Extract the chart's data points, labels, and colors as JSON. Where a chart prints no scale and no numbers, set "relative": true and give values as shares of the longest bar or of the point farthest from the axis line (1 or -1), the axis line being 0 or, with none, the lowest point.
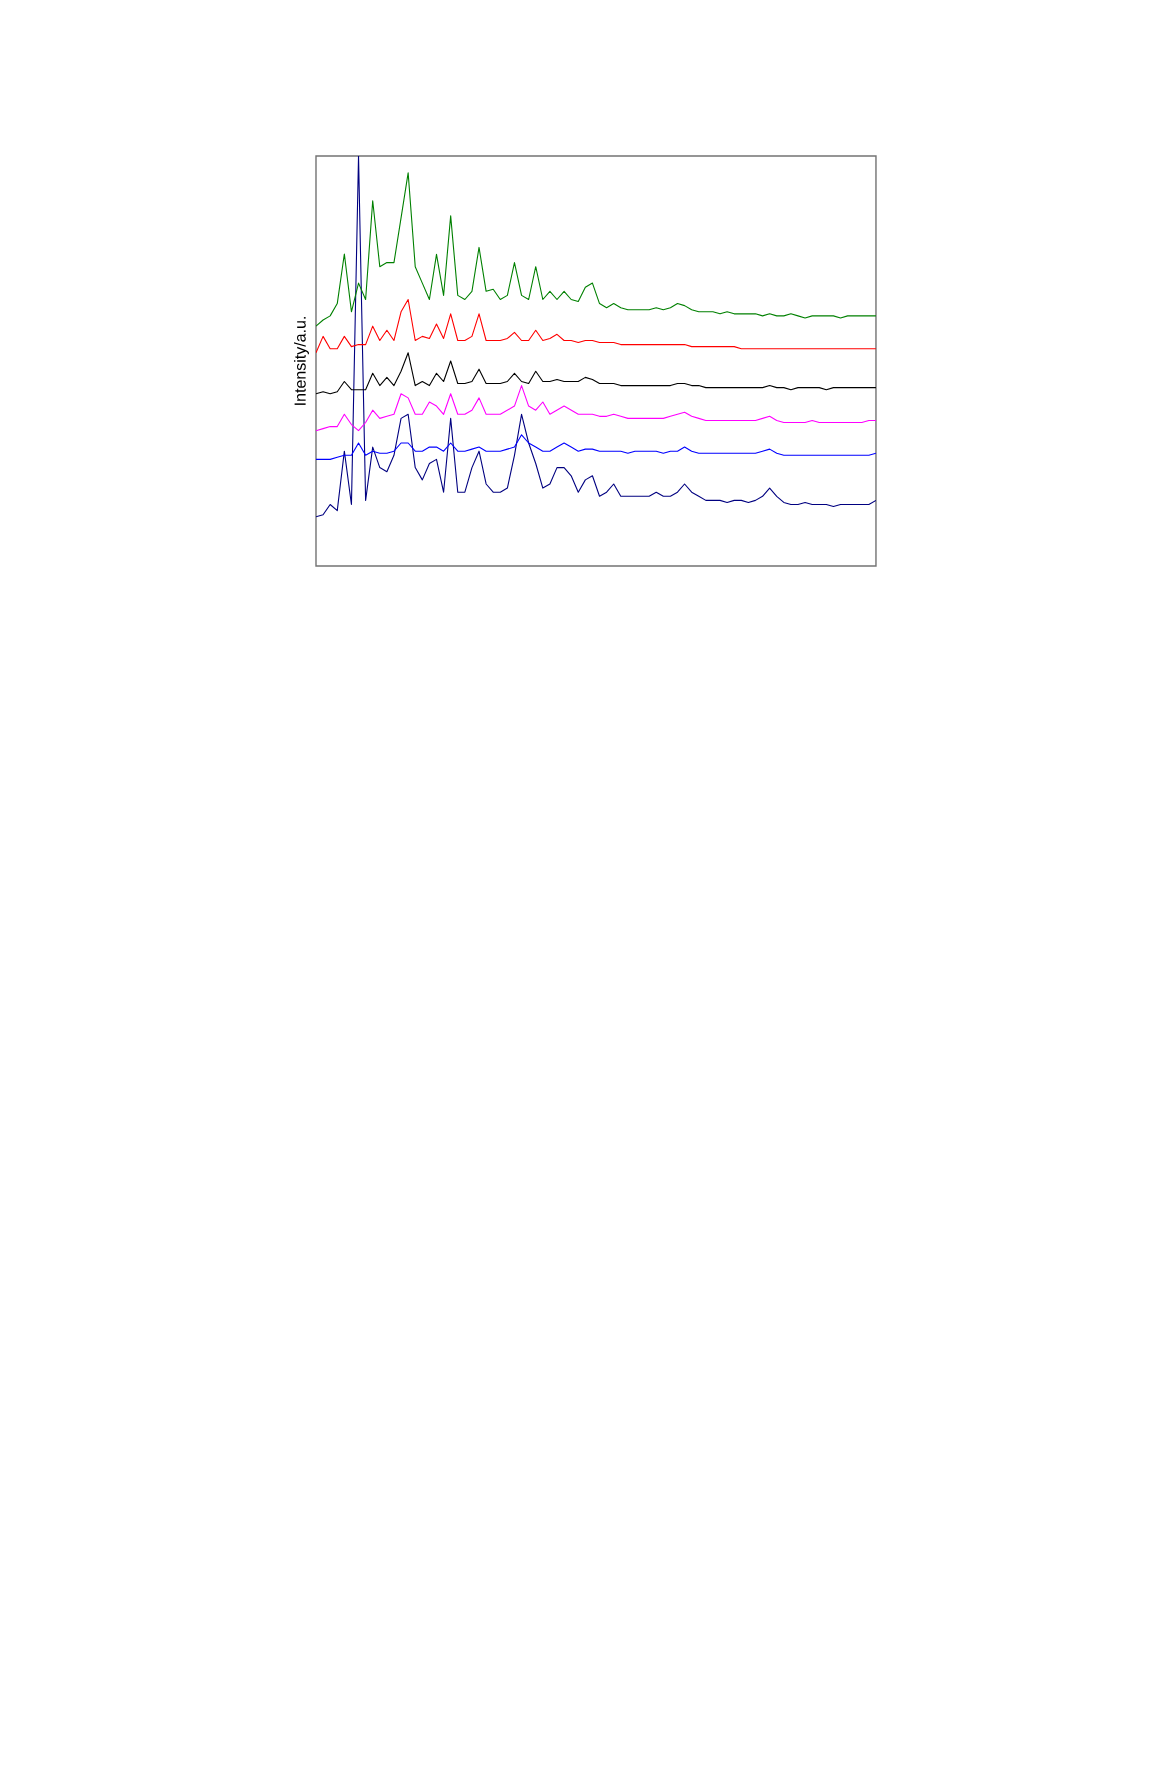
{
  "chart_data": {
    "type": "line",
    "ylabel": "Intensity/a.u.",
    "relative": true,
    "marker": "none",
    "line_style": "solid",
    "categories": [
      null,
      null,
      null,
      null,
      null,
      null,
      null,
      null,
      null,
      null,
      null,
      null,
      null,
      null,
      null,
      null,
      null,
      null,
      null,
      null,
      null,
      null,
      null,
      null,
      null,
      null,
      null,
      null,
      null,
      null,
      null,
      null,
      null,
      null,
      null,
      null,
      null,
      null,
      null,
      null,
      null,
      null,
      null,
      null,
      null,
      null,
      null,
      null,
      null,
      null,
      null,
      null,
      null,
      null,
      null,
      null,
      null,
      null,
      null,
      null,
      null,
      null,
      null,
      null,
      null,
      null,
      null,
      null,
      null,
      null,
      null,
      null,
      null,
      null,
      null,
      null,
      null,
      null,
      null,
      null
    ],
    "series": [
      {
        "color": "#000080",
        "values": [
          0.12,
          0.125,
          0.15,
          0.135,
          0.28,
          0.15,
          1.0,
          0.16,
          0.29,
          0.24,
          0.23,
          0.27,
          0.36,
          0.37,
          0.24,
          0.21,
          0.25,
          0.26,
          0.18,
          0.36,
          0.18,
          0.18,
          0.24,
          0.28,
          0.2,
          0.18,
          0.18,
          0.19,
          0.27,
          0.37,
          0.3,
          0.25,
          0.19,
          0.2,
          0.24,
          0.24,
          0.22,
          0.18,
          0.21,
          0.22,
          0.17,
          0.18,
          0.2,
          0.17,
          0.17,
          0.17,
          0.17,
          0.17,
          0.18,
          0.17,
          0.17,
          0.18,
          0.2,
          0.18,
          0.17,
          0.16,
          0.16,
          0.16,
          0.155,
          0.16,
          0.16,
          0.155,
          0.16,
          0.17,
          0.19,
          0.17,
          0.155,
          0.15,
          0.15,
          0.155,
          0.15,
          0.15,
          0.15,
          0.145,
          0.15,
          0.15,
          0.15,
          0.15,
          0.15,
          0.16
        ]
      },
      {
        "color": "#0000ff",
        "values": [
          0.26,
          0.26,
          0.26,
          0.265,
          0.27,
          0.27,
          0.3,
          0.27,
          0.28,
          0.275,
          0.275,
          0.28,
          0.3,
          0.3,
          0.28,
          0.28,
          0.29,
          0.29,
          0.28,
          0.3,
          0.28,
          0.28,
          0.285,
          0.29,
          0.28,
          0.28,
          0.28,
          0.285,
          0.29,
          0.32,
          0.3,
          0.29,
          0.28,
          0.28,
          0.29,
          0.3,
          0.29,
          0.28,
          0.285,
          0.285,
          0.28,
          0.28,
          0.28,
          0.28,
          0.275,
          0.28,
          0.28,
          0.28,
          0.28,
          0.275,
          0.28,
          0.28,
          0.29,
          0.28,
          0.275,
          0.275,
          0.275,
          0.275,
          0.275,
          0.275,
          0.275,
          0.275,
          0.275,
          0.28,
          0.285,
          0.275,
          0.27,
          0.27,
          0.27,
          0.27,
          0.27,
          0.27,
          0.27,
          0.27,
          0.27,
          0.27,
          0.27,
          0.27,
          0.27,
          0.275
        ]
      },
      {
        "color": "#ff00ff",
        "values": [
          0.33,
          0.335,
          0.34,
          0.34,
          0.37,
          0.345,
          0.33,
          0.35,
          0.38,
          0.36,
          0.365,
          0.37,
          0.42,
          0.41,
          0.37,
          0.37,
          0.4,
          0.39,
          0.37,
          0.42,
          0.37,
          0.37,
          0.38,
          0.41,
          0.37,
          0.37,
          0.37,
          0.38,
          0.39,
          0.44,
          0.39,
          0.38,
          0.4,
          0.37,
          0.38,
          0.39,
          0.38,
          0.37,
          0.37,
          0.37,
          0.365,
          0.365,
          0.37,
          0.365,
          0.36,
          0.36,
          0.36,
          0.36,
          0.36,
          0.36,
          0.365,
          0.37,
          0.375,
          0.365,
          0.36,
          0.355,
          0.355,
          0.355,
          0.355,
          0.355,
          0.355,
          0.355,
          0.355,
          0.36,
          0.365,
          0.355,
          0.35,
          0.35,
          0.35,
          0.35,
          0.355,
          0.35,
          0.35,
          0.35,
          0.35,
          0.35,
          0.35,
          0.35,
          0.355,
          0.355
        ]
      },
      {
        "color": "#000000",
        "values": [
          0.42,
          0.425,
          0.42,
          0.425,
          0.45,
          0.43,
          0.43,
          0.43,
          0.47,
          0.44,
          0.46,
          0.44,
          0.475,
          0.52,
          0.44,
          0.45,
          0.44,
          0.47,
          0.45,
          0.5,
          0.445,
          0.445,
          0.45,
          0.48,
          0.445,
          0.445,
          0.445,
          0.45,
          0.47,
          0.45,
          0.445,
          0.475,
          0.45,
          0.45,
          0.455,
          0.45,
          0.45,
          0.45,
          0.46,
          0.455,
          0.445,
          0.445,
          0.445,
          0.44,
          0.44,
          0.44,
          0.44,
          0.44,
          0.44,
          0.44,
          0.44,
          0.445,
          0.445,
          0.44,
          0.44,
          0.435,
          0.435,
          0.435,
          0.435,
          0.435,
          0.435,
          0.435,
          0.435,
          0.435,
          0.44,
          0.435,
          0.435,
          0.43,
          0.435,
          0.435,
          0.435,
          0.435,
          0.43,
          0.435,
          0.435,
          0.435,
          0.435,
          0.435,
          0.435,
          0.435
        ]
      },
      {
        "color": "#ff0000",
        "values": [
          0.52,
          0.56,
          0.53,
          0.53,
          0.56,
          0.535,
          0.54,
          0.54,
          0.585,
          0.55,
          0.575,
          0.55,
          0.62,
          0.65,
          0.55,
          0.56,
          0.555,
          0.59,
          0.555,
          0.615,
          0.55,
          0.55,
          0.56,
          0.615,
          0.55,
          0.55,
          0.55,
          0.555,
          0.57,
          0.55,
          0.55,
          0.575,
          0.55,
          0.555,
          0.565,
          0.55,
          0.55,
          0.545,
          0.55,
          0.55,
          0.545,
          0.545,
          0.545,
          0.54,
          0.54,
          0.54,
          0.54,
          0.54,
          0.54,
          0.54,
          0.54,
          0.54,
          0.54,
          0.535,
          0.535,
          0.535,
          0.535,
          0.535,
          0.535,
          0.535,
          0.53,
          0.53,
          0.53,
          0.53,
          0.53,
          0.53,
          0.53,
          0.53,
          0.53,
          0.53,
          0.53,
          0.53,
          0.53,
          0.53,
          0.53,
          0.53,
          0.53,
          0.53,
          0.53,
          0.53
        ]
      },
      {
        "color": "#008000",
        "values": [
          0.585,
          0.6,
          0.61,
          0.64,
          0.761,
          0.62,
          0.69,
          0.65,
          0.891,
          0.73,
          0.74,
          0.74,
          0.849,
          0.959,
          0.73,
          0.69,
          0.65,
          0.76,
          0.66,
          0.854,
          0.66,
          0.65,
          0.67,
          0.777,
          0.67,
          0.675,
          0.65,
          0.66,
          0.74,
          0.66,
          0.65,
          0.73,
          0.65,
          0.67,
          0.65,
          0.67,
          0.65,
          0.645,
          0.68,
          0.69,
          0.64,
          0.63,
          0.64,
          0.63,
          0.625,
          0.625,
          0.625,
          0.625,
          0.63,
          0.625,
          0.63,
          0.64,
          0.635,
          0.625,
          0.62,
          0.62,
          0.62,
          0.615,
          0.62,
          0.615,
          0.615,
          0.615,
          0.615,
          0.61,
          0.615,
          0.61,
          0.61,
          0.615,
          0.61,
          0.605,
          0.61,
          0.61,
          0.61,
          0.61,
          0.605,
          0.61,
          0.61,
          0.61,
          0.61,
          0.61
        ]
      }
    ]
  }
}
